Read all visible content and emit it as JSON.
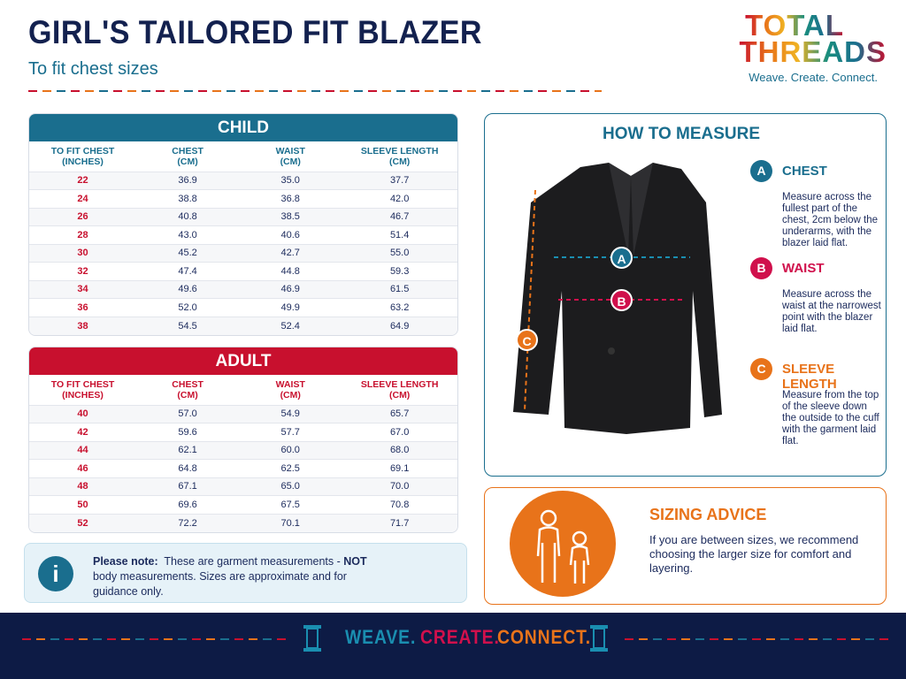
{
  "header": {
    "title": "GIRL'S TAILORED FIT BLAZER",
    "subtitle": "To fit chest sizes"
  },
  "logo": {
    "line1": "TOTAL",
    "line2": "THREADS",
    "tagline": "Weave. Create. Connect."
  },
  "tables": [
    {
      "title": "CHILD",
      "headers": [
        "TO FIT CHEST\n(INCHES)",
        "CHEST\n(CM)",
        "WAIST\n(CM)",
        "SLEEVE LENGTH\n(CM)"
      ],
      "rows": [
        [
          "22",
          "36.9",
          "35.0",
          "37.7"
        ],
        [
          "24",
          "38.8",
          "36.8",
          "42.0"
        ],
        [
          "26",
          "40.8",
          "38.5",
          "46.7"
        ],
        [
          "28",
          "43.0",
          "40.6",
          "51.4"
        ],
        [
          "30",
          "45.2",
          "42.7",
          "55.0"
        ],
        [
          "32",
          "47.4",
          "44.8",
          "59.3"
        ],
        [
          "34",
          "49.6",
          "46.9",
          "61.5"
        ],
        [
          "36",
          "52.0",
          "49.9",
          "63.2"
        ],
        [
          "38",
          "54.5",
          "52.4",
          "64.9"
        ]
      ]
    },
    {
      "title": "ADULT",
      "headers": [
        "TO FIT CHEST\n(INCHES)",
        "CHEST\n(CM)",
        "WAIST\n(CM)",
        "SLEEVE LENGTH\n(CM)"
      ],
      "rows": [
        [
          "40",
          "57.0",
          "54.9",
          "65.7"
        ],
        [
          "42",
          "59.6",
          "57.7",
          "67.0"
        ],
        [
          "44",
          "62.1",
          "60.0",
          "68.0"
        ],
        [
          "46",
          "64.8",
          "62.5",
          "69.1"
        ],
        [
          "48",
          "67.1",
          "65.0",
          "70.0"
        ],
        [
          "50",
          "69.6",
          "67.5",
          "70.8"
        ],
        [
          "52",
          "72.2",
          "70.1",
          "71.7"
        ]
      ]
    }
  ],
  "note": {
    "icon": "i",
    "label": "Please note:",
    "text1": "These are garment measurements -",
    "emphasis": "NOT",
    "text2": "body measurements. Sizes are approximate and for guidance only."
  },
  "how_to_measure": {
    "title": "HOW TO MEASURE",
    "items": [
      {
        "letter": "A",
        "name": "CHEST",
        "text": "Measure across the fullest part of the chest, 2cm below the underarms, with the blazer laid flat."
      },
      {
        "letter": "B",
        "name": "WAIST",
        "text": "Measure across the waist at the narrowest point with the blazer laid flat."
      },
      {
        "letter": "C",
        "name": "SLEEVE LENGTH",
        "text": "Measure from the top of the sleeve down the outside to the cuff with the garment laid flat."
      }
    ]
  },
  "sizing_advice": {
    "title": "SIZING ADVICE",
    "text": "If you are between sizes, we recommend choosing the larger size for comfort and layering."
  },
  "footer": {
    "words": [
      "WEAVE.",
      "CREATE.",
      "CONNECT."
    ]
  }
}
